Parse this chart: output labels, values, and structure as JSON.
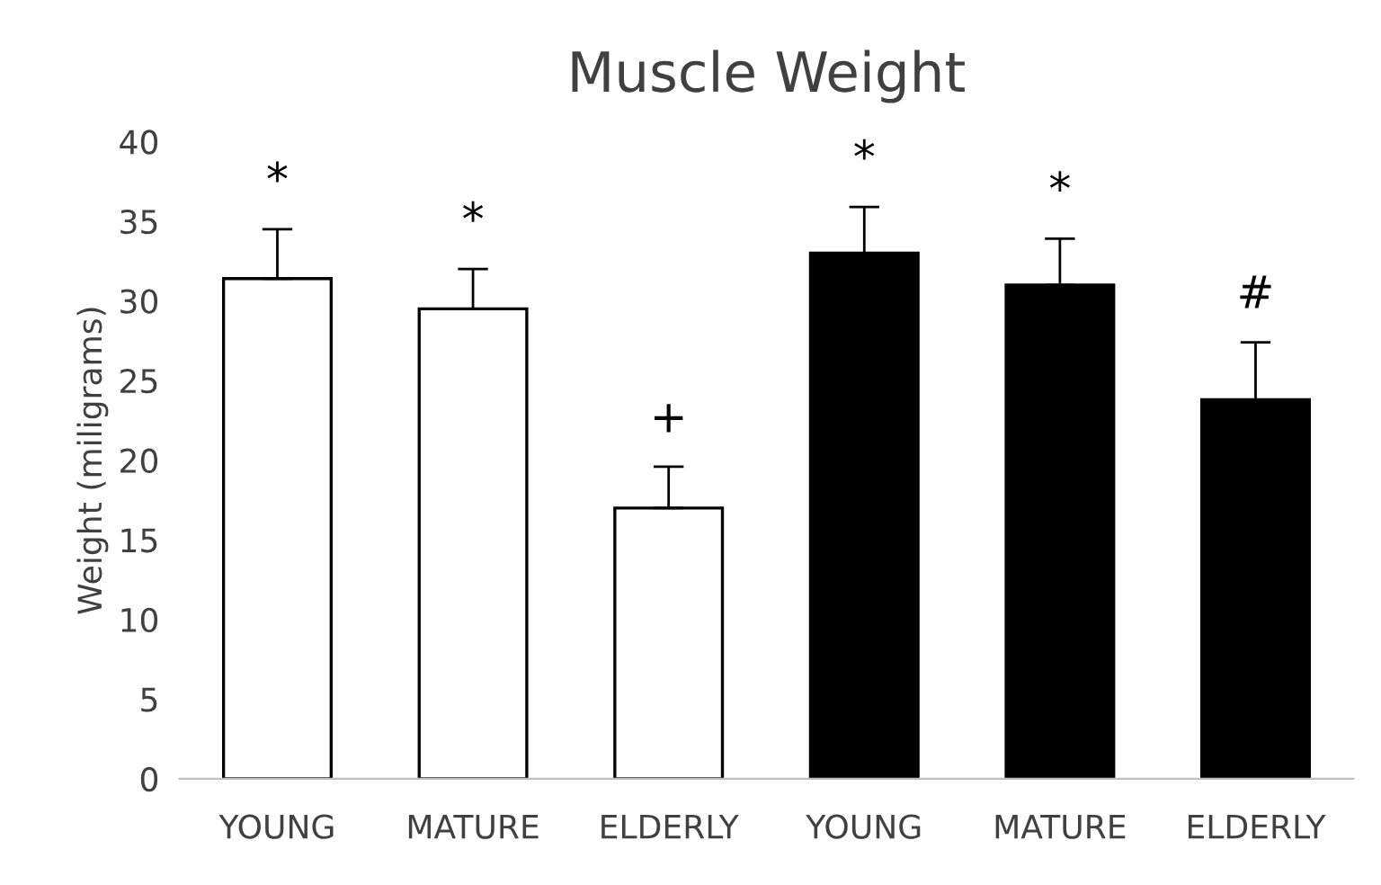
{
  "chart_data": {
    "type": "bar",
    "title": "Muscle Weight",
    "ylabel": "Weight (miligrams)",
    "categories": [
      "YOUNG",
      "MATURE",
      "ELDERLY",
      "YOUNG",
      "MATURE",
      "ELDERLY"
    ],
    "values": [
      31.4,
      29.5,
      17.0,
      33.0,
      31.0,
      23.8
    ],
    "errors": [
      [
        31.4,
        34.5
      ],
      [
        29.5,
        32.0
      ],
      [
        17.0,
        19.6
      ],
      [
        33.0,
        35.9
      ],
      [
        31.0,
        33.9
      ],
      [
        23.8,
        27.4
      ]
    ],
    "colors": [
      "#ffffff",
      "#ffffff",
      "#ffffff",
      "#000000",
      "#000000",
      "#000000"
    ],
    "ylim": [
      0,
      40
    ],
    "yticks": [
      0,
      5,
      10,
      15,
      20,
      25,
      30,
      35,
      40
    ],
    "grid": false,
    "annotations": [
      "*",
      "*",
      "+",
      "*",
      "*",
      "#"
    ]
  }
}
